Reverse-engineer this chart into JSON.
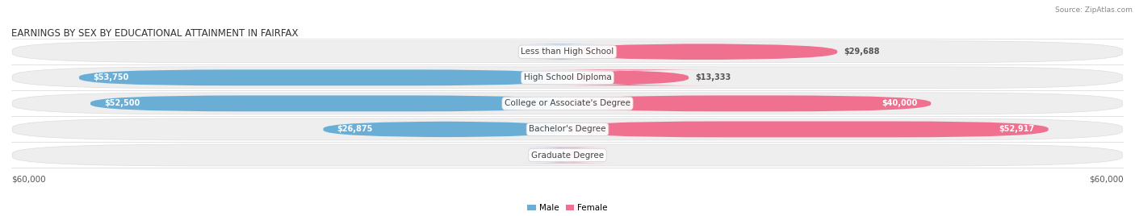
{
  "title": "EARNINGS BY SEX BY EDUCATIONAL ATTAINMENT IN FAIRFAX",
  "source": "Source: ZipAtlas.com",
  "categories": [
    "Less than High School",
    "High School Diploma",
    "College or Associate's Degree",
    "Bachelor's Degree",
    "Graduate Degree"
  ],
  "male_values": [
    0,
    53750,
    52500,
    26875,
    0
  ],
  "female_values": [
    29688,
    13333,
    40000,
    52917,
    0
  ],
  "male_color": "#6aaed6",
  "female_color": "#f07090",
  "male_color_light": "#adc9e8",
  "female_color_light": "#f8b4c0",
  "row_bg_color": "#eeeeee",
  "row_border_color": "#dddddd",
  "max_value": 60000,
  "xlabel_left": "$60,000",
  "xlabel_right": "$60,000",
  "legend_male": "Male",
  "legend_female": "Female",
  "title_fontsize": 8.5,
  "source_fontsize": 6.5,
  "label_fontsize": 7.5,
  "category_fontsize": 7.5,
  "value_fontsize": 7.0,
  "fig_width": 14.06,
  "fig_height": 2.68,
  "dpi": 100
}
